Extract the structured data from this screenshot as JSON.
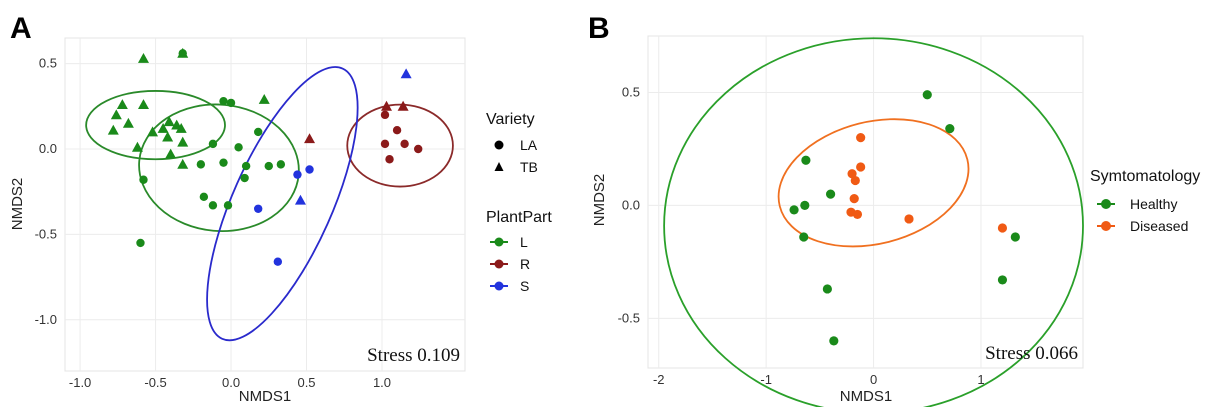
{
  "chart_data": [
    {
      "panel": "A",
      "type": "scatter",
      "xlabel": "NMDS1",
      "ylabel": "NMDS2",
      "xlim": [
        -1.1,
        1.55
      ],
      "ylim": [
        -1.3,
        0.65
      ],
      "xticks": [
        -1.0,
        -0.5,
        0.0,
        0.5,
        1.0
      ],
      "xtick_labels": [
        "-1.0",
        "-0.5",
        "0.0",
        "0.5",
        "1.0"
      ],
      "yticks": [
        0.5,
        0.0,
        -0.5,
        -1.0
      ],
      "ytick_labels": [
        "0.5",
        "0.0",
        "-0.5",
        "-1.0"
      ],
      "grid": true,
      "annotation": "Stress 0.109",
      "legends": [
        {
          "title": "Variety",
          "items": [
            {
              "label": "LA",
              "shape": "circle"
            },
            {
              "label": "TB",
              "shape": "triangle"
            }
          ]
        },
        {
          "title": "PlantPart",
          "items": [
            {
              "label": "L",
              "color": "#1a8a1a"
            },
            {
              "label": "R",
              "color": "#8b1a1a"
            },
            {
              "label": "S",
              "color": "#2233dd"
            }
          ]
        }
      ],
      "colors": {
        "L": "#1a8a1a",
        "R": "#8b1a1a",
        "S": "#2233dd"
      },
      "ellipse_colors": {
        "L": "#2a8a2a",
        "R": "#8b2a2a",
        "S": "#2a2acc"
      },
      "series": [
        {
          "name": "L",
          "points": [
            {
              "x": -0.32,
              "y": 0.56,
              "shape": "triangle"
            },
            {
              "x": -0.58,
              "y": 0.53,
              "shape": "triangle"
            },
            {
              "x": -0.32,
              "y": 0.56,
              "shape": "circle"
            },
            {
              "x": -0.72,
              "y": 0.26,
              "shape": "triangle"
            },
            {
              "x": -0.58,
              "y": 0.26,
              "shape": "triangle"
            },
            {
              "x": -0.76,
              "y": 0.2,
              "shape": "triangle"
            },
            {
              "x": -0.68,
              "y": 0.15,
              "shape": "triangle"
            },
            {
              "x": -0.78,
              "y": 0.11,
              "shape": "triangle"
            },
            {
              "x": -0.41,
              "y": 0.16,
              "shape": "triangle"
            },
            {
              "x": -0.36,
              "y": 0.14,
              "shape": "triangle"
            },
            {
              "x": -0.45,
              "y": 0.12,
              "shape": "triangle"
            },
            {
              "x": -0.52,
              "y": 0.1,
              "shape": "triangle"
            },
            {
              "x": -0.33,
              "y": 0.12,
              "shape": "triangle"
            },
            {
              "x": -0.42,
              "y": 0.07,
              "shape": "triangle"
            },
            {
              "x": -0.32,
              "y": 0.04,
              "shape": "triangle"
            },
            {
              "x": -0.62,
              "y": 0.01,
              "shape": "triangle"
            },
            {
              "x": -0.4,
              "y": -0.03,
              "shape": "triangle"
            },
            {
              "x": -0.32,
              "y": -0.09,
              "shape": "triangle"
            },
            {
              "x": 0.22,
              "y": 0.29,
              "shape": "triangle"
            },
            {
              "x": 0.0,
              "y": 0.27,
              "shape": "circle"
            },
            {
              "x": -0.05,
              "y": 0.28,
              "shape": "circle"
            },
            {
              "x": 0.18,
              "y": 0.1,
              "shape": "circle"
            },
            {
              "x": -0.12,
              "y": 0.03,
              "shape": "circle"
            },
            {
              "x": 0.05,
              "y": 0.01,
              "shape": "circle"
            },
            {
              "x": -0.05,
              "y": -0.08,
              "shape": "circle"
            },
            {
              "x": -0.2,
              "y": -0.09,
              "shape": "circle"
            },
            {
              "x": 0.1,
              "y": -0.1,
              "shape": "circle"
            },
            {
              "x": 0.25,
              "y": -0.1,
              "shape": "circle"
            },
            {
              "x": 0.33,
              "y": -0.09,
              "shape": "circle"
            },
            {
              "x": 0.09,
              "y": -0.17,
              "shape": "circle"
            },
            {
              "x": -0.58,
              "y": -0.18,
              "shape": "circle"
            },
            {
              "x": -0.18,
              "y": -0.28,
              "shape": "circle"
            },
            {
              "x": -0.12,
              "y": -0.33,
              "shape": "circle"
            },
            {
              "x": -0.02,
              "y": -0.33,
              "shape": "circle"
            },
            {
              "x": -0.6,
              "y": -0.55,
              "shape": "circle"
            }
          ]
        },
        {
          "name": "R",
          "points": [
            {
              "x": 1.03,
              "y": 0.25,
              "shape": "triangle"
            },
            {
              "x": 1.14,
              "y": 0.25,
              "shape": "triangle"
            },
            {
              "x": 0.52,
              "y": 0.06,
              "shape": "triangle"
            },
            {
              "x": 1.02,
              "y": 0.2,
              "shape": "circle"
            },
            {
              "x": 1.1,
              "y": 0.11,
              "shape": "circle"
            },
            {
              "x": 1.02,
              "y": 0.03,
              "shape": "circle"
            },
            {
              "x": 1.15,
              "y": 0.03,
              "shape": "circle"
            },
            {
              "x": 1.24,
              "y": 0.0,
              "shape": "circle"
            },
            {
              "x": 1.05,
              "y": -0.06,
              "shape": "circle"
            }
          ]
        },
        {
          "name": "S",
          "points": [
            {
              "x": 1.16,
              "y": 0.44,
              "shape": "triangle"
            },
            {
              "x": 0.46,
              "y": -0.3,
              "shape": "triangle"
            },
            {
              "x": 0.52,
              "y": -0.12,
              "shape": "circle"
            },
            {
              "x": 0.44,
              "y": -0.15,
              "shape": "circle"
            },
            {
              "x": 0.18,
              "y": -0.35,
              "shape": "circle"
            },
            {
              "x": 0.31,
              "y": -0.66,
              "shape": "circle"
            }
          ]
        }
      ],
      "ellipses": [
        {
          "group": "L-TB",
          "cx": -0.5,
          "cy": 0.14,
          "rx": 0.46,
          "ry": 0.2,
          "angle": 0
        },
        {
          "group": "L",
          "cx": -0.08,
          "cy": -0.11,
          "rx": 0.53,
          "ry": 0.37,
          "angle": 5
        },
        {
          "group": "R",
          "cx": 1.12,
          "cy": 0.02,
          "rx": 0.35,
          "ry": 0.24,
          "angle": 0
        },
        {
          "group": "S",
          "cx": 0.34,
          "cy": -0.32,
          "rx": 0.98,
          "ry": 0.29,
          "angle": -66
        }
      ]
    },
    {
      "panel": "B",
      "type": "scatter",
      "xlabel": "NMDS1",
      "ylabel": "NMDS2",
      "xlim": [
        -2.1,
        1.95
      ],
      "ylim": [
        -0.72,
        0.75
      ],
      "xticks": [
        -2,
        -1,
        0,
        1
      ],
      "xtick_labels": [
        "-2",
        "-1",
        "0",
        "1"
      ],
      "yticks": [
        0.5,
        0.0,
        -0.5
      ],
      "ytick_labels": [
        "0.5",
        "0.0",
        "-0.5"
      ],
      "grid": true,
      "annotation": "Stress 0.066",
      "legends": [
        {
          "title": "Symtomatology",
          "items": [
            {
              "label": "Healthy",
              "color": "#1a8a1a"
            },
            {
              "label": "Diseased",
              "color": "#f05a14"
            }
          ]
        }
      ],
      "colors": {
        "Healthy": "#1a8a1a",
        "Diseased": "#f05a14"
      },
      "ellipse_colors": {
        "Healthy": "#2aa02a",
        "Diseased": "#f07020"
      },
      "series": [
        {
          "name": "Healthy",
          "points": [
            {
              "x": 0.5,
              "y": 0.49
            },
            {
              "x": 0.71,
              "y": 0.34
            },
            {
              "x": -0.63,
              "y": 0.2
            },
            {
              "x": -0.4,
              "y": 0.05
            },
            {
              "x": -0.64,
              "y": 0.0
            },
            {
              "x": -0.74,
              "y": -0.02
            },
            {
              "x": -0.65,
              "y": -0.14
            },
            {
              "x": -0.43,
              "y": -0.37
            },
            {
              "x": -0.37,
              "y": -0.6
            },
            {
              "x": 1.32,
              "y": -0.14
            },
            {
              "x": 1.2,
              "y": -0.33
            }
          ]
        },
        {
          "name": "Diseased",
          "points": [
            {
              "x": -0.12,
              "y": 0.3
            },
            {
              "x": -0.12,
              "y": 0.17
            },
            {
              "x": -0.2,
              "y": 0.14
            },
            {
              "x": -0.17,
              "y": 0.11
            },
            {
              "x": -0.18,
              "y": 0.03
            },
            {
              "x": -0.21,
              "y": -0.03
            },
            {
              "x": -0.15,
              "y": -0.04
            },
            {
              "x": 0.33,
              "y": -0.06
            },
            {
              "x": 1.2,
              "y": -0.1
            }
          ]
        }
      ],
      "ellipses": [
        {
          "group": "Healthy",
          "cx": 0.0,
          "cy": -0.09,
          "rx": 1.95,
          "ry": 0.83,
          "angle": 0
        },
        {
          "group": "Diseased",
          "cx": 0.0,
          "cy": 0.1,
          "rx": 0.9,
          "ry": 0.27,
          "angle": -14
        }
      ]
    }
  ]
}
